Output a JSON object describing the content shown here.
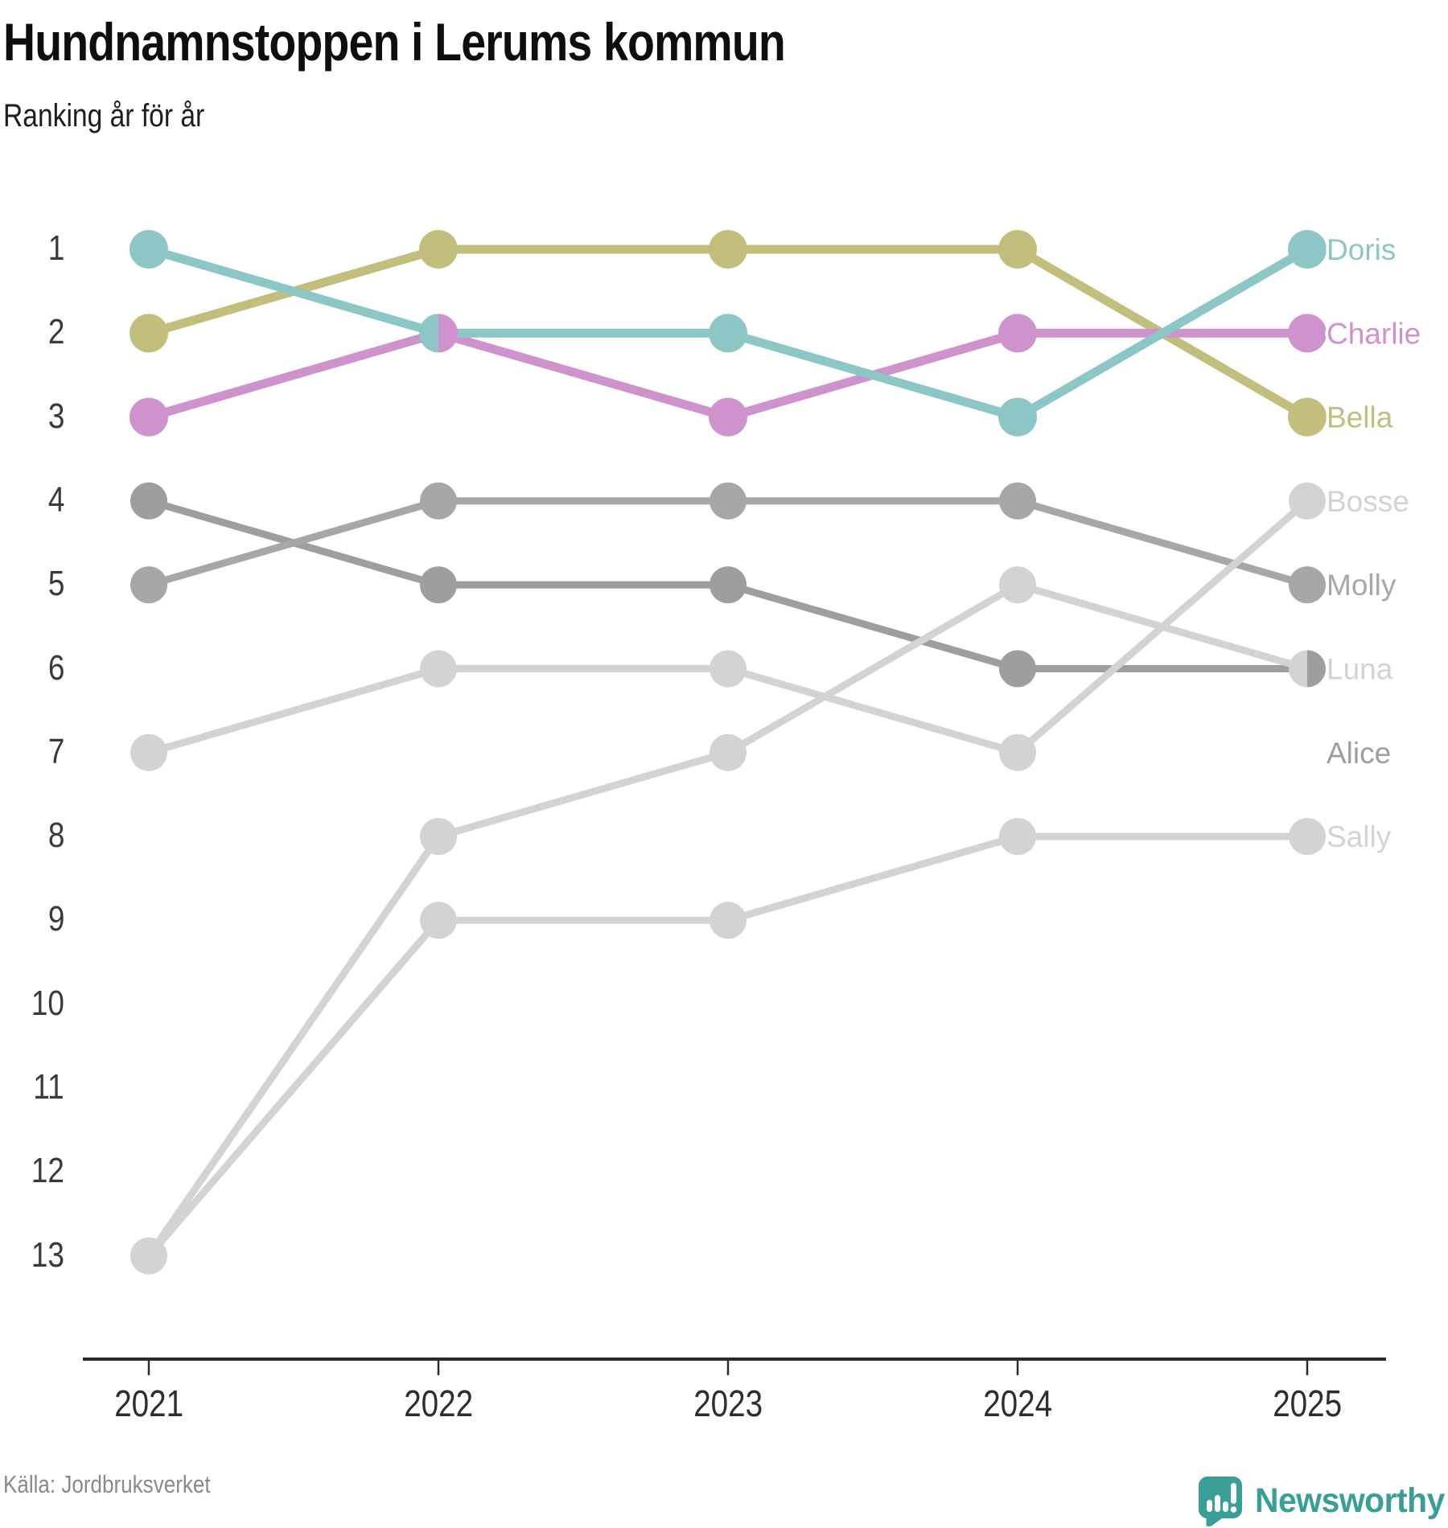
{
  "header": {
    "title": "Hundnamnstoppen i Lerums kommun",
    "subtitle": "Ranking år för år"
  },
  "footer": {
    "source": "Källa: Jordbruksverket",
    "brand": "Newsworthy",
    "brand_color": "#399e96"
  },
  "chart_data": {
    "type": "line",
    "variant": "bump-ranking",
    "title": "Hundnamnstoppen i Lerums kommun",
    "subtitle": "Ranking år för år",
    "x": [
      "2021",
      "2022",
      "2023",
      "2024",
      "2025"
    ],
    "y_ticks": [
      "1",
      "2",
      "3",
      "4",
      "5",
      "6",
      "7",
      "8",
      "9",
      "10",
      "11",
      "12",
      "13"
    ],
    "ylim": [
      1,
      13
    ],
    "grid": false,
    "legend_position": "right-inline-labels",
    "axis_color": "#2b2b2b",
    "series": [
      {
        "name": "Doris",
        "color": "#8cc7c6",
        "values": [
          1,
          2,
          2,
          3,
          1
        ],
        "label_row": 1
      },
      {
        "name": "Charlie",
        "color": "#ce93cd",
        "values": [
          3,
          2,
          3,
          2,
          2
        ],
        "label_row": 2
      },
      {
        "name": "Bella",
        "color": "#c2bf7c",
        "values": [
          2,
          1,
          1,
          1,
          3
        ],
        "label_row": 3
      },
      {
        "name": "Bosse",
        "color": "#d3d3d3",
        "values": [
          7,
          6,
          6,
          7,
          4
        ],
        "label_row": 4
      },
      {
        "name": "Molly",
        "color": "#a7a7a7",
        "values": [
          5,
          4,
          4,
          4,
          5
        ],
        "label_row": 5
      },
      {
        "name": "Luna",
        "color": "#d3d3d3",
        "values": [
          13,
          8,
          7,
          5,
          6
        ],
        "label_row": 6
      },
      {
        "name": "Alice",
        "color": "#9e9e9e",
        "values": [
          4,
          5,
          5,
          6,
          6
        ],
        "label_row": 7
      },
      {
        "name": "Sally",
        "color": "#d3d3d3",
        "values": [
          13,
          9,
          9,
          8,
          8
        ],
        "label_row": 8
      }
    ],
    "tied_split_dots": [
      {
        "x": "2022",
        "rank": 2,
        "left": "Doris",
        "right": "Charlie"
      },
      {
        "x": "2025",
        "rank": 6,
        "left": "Luna",
        "right": "Alice"
      },
      {
        "x": "2021",
        "rank": 13,
        "left": "Luna",
        "right": "Sally"
      }
    ]
  }
}
